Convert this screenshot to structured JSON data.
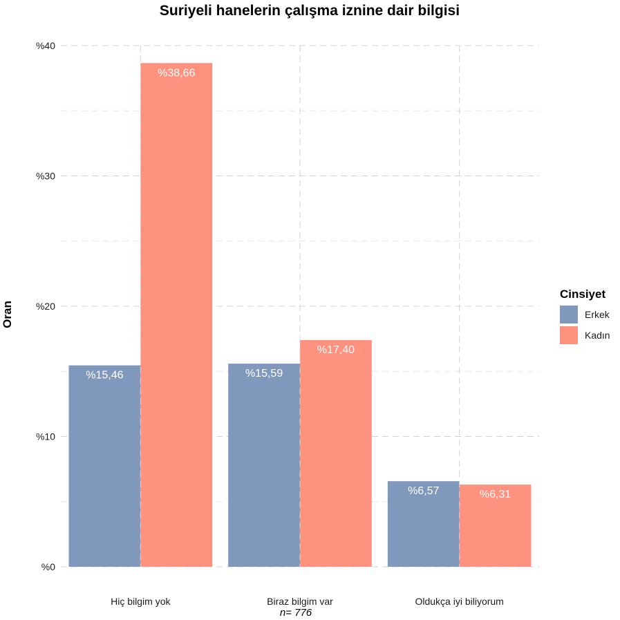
{
  "chart_data": {
    "type": "bar",
    "title": "Suriyeli hanelerin çalışma iznine dair bilgisi",
    "xlabel": "n=  776",
    "ylabel": "Oran",
    "ylim": [
      0,
      40
    ],
    "yticks": [
      0,
      10,
      20,
      30,
      40
    ],
    "ytick_labels": [
      "%0",
      "%10",
      "%20",
      "%30",
      "%40"
    ],
    "grid": true,
    "categories": [
      "Hiç bilgim yok",
      "Biraz bilgim var",
      "Oldukça iyi biliyorum"
    ],
    "series": [
      {
        "name": "Erkek",
        "color": "#7F98BC",
        "values": [
          15.46,
          15.59,
          6.57
        ],
        "labels": [
          "%15,46",
          "%15,59",
          "%6,57"
        ]
      },
      {
        "name": "Kadın",
        "color": "#FF917F",
        "values": [
          38.66,
          17.4,
          6.31
        ],
        "labels": [
          "%38,66",
          "%17,40",
          "%6,31"
        ]
      }
    ],
    "legend": {
      "title": "Cinsiyet",
      "position": "right"
    }
  }
}
